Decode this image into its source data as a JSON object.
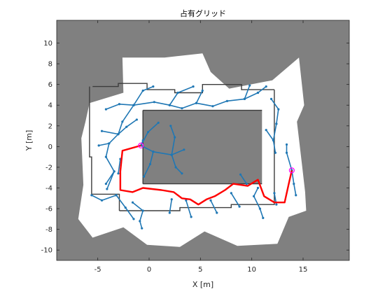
{
  "chart_data": {
    "type": "occupancy-grid",
    "title": "占有グリッド",
    "xlabel": "X [m]",
    "ylabel": "Y [m]",
    "xlim": [
      -9,
      19.5
    ],
    "ylim": [
      -11,
      12.2
    ],
    "xticks": [
      -5,
      0,
      5,
      10,
      15
    ],
    "yticks": [
      10,
      8,
      6,
      4,
      2,
      0,
      -2,
      -4,
      -6,
      -8,
      -10
    ],
    "grid": false,
    "colors": {
      "unknown": "#808080",
      "free": "#ffffff",
      "occupied": "#3c3c3c",
      "tree": "#1f77b4",
      "path": "#ff0000",
      "endpoint": "#ff00ff"
    },
    "free_regions": [
      [
        [
          -5.8,
          4.2
        ],
        [
          -2.5,
          5.2
        ],
        [
          -2.6,
          8.6
        ],
        [
          1.5,
          8.6
        ],
        [
          5.2,
          9.0
        ],
        [
          6.0,
          7.2
        ],
        [
          7.8,
          5.6
        ],
        [
          12.0,
          6.4
        ],
        [
          14.6,
          8.6
        ],
        [
          15.1,
          4.0
        ],
        [
          14.4,
          2.4
        ],
        [
          14.9,
          -1.8
        ],
        [
          15.2,
          -4.4
        ],
        [
          15.3,
          -6.2
        ],
        [
          13.6,
          -6.8
        ],
        [
          12.5,
          -9.4
        ],
        [
          8.6,
          -9.6
        ],
        [
          5.4,
          -8.2
        ],
        [
          3.0,
          -9.7
        ],
        [
          -0.2,
          -9.5
        ],
        [
          -2.5,
          -7.8
        ],
        [
          -5.5,
          -8.8
        ],
        [
          -6.9,
          -7.0
        ],
        [
          -6.4,
          -3.7
        ],
        [
          -6.5,
          -1.5
        ],
        [
          -6.6,
          0.8
        ],
        [
          -6.2,
          2.4
        ]
      ]
    ],
    "inner_block": [
      [
        -0.6,
        3.5
      ],
      [
        11.0,
        3.5
      ],
      [
        11.0,
        -3.6
      ],
      [
        -0.6,
        -3.6
      ]
    ],
    "walls": [
      [
        [
          -5.5,
          5.8
        ],
        [
          -3.0,
          5.8
        ],
        [
          -3.0,
          6.1
        ],
        [
          -0.2,
          6.1
        ],
        [
          -0.2,
          5.5
        ],
        [
          2.5,
          5.5
        ],
        [
          2.5,
          5.2
        ],
        [
          5.2,
          5.2
        ],
        [
          5.2,
          6.0
        ],
        [
          9.0,
          6.0
        ],
        [
          9.0,
          5.5
        ],
        [
          12.2,
          5.5
        ]
      ],
      [
        [
          12.2,
          5.5
        ],
        [
          12.2,
          -5.6
        ],
        [
          8.0,
          -5.6
        ],
        [
          8.0,
          -5.9
        ],
        [
          3.0,
          -5.9
        ],
        [
          3.0,
          -6.2
        ],
        [
          -2.9,
          -6.2
        ]
      ],
      [
        [
          -2.9,
          -6.2
        ],
        [
          -2.9,
          -4.6
        ],
        [
          -5.6,
          -4.6
        ],
        [
          -5.6,
          -1.0
        ],
        [
          -5.8,
          -1.0
        ],
        [
          -5.8,
          5.8
        ]
      ],
      [
        [
          -0.6,
          3.5
        ],
        [
          11.0,
          3.5
        ]
      ],
      [
        [
          -0.6,
          -3.6
        ],
        [
          11.0,
          -3.6
        ]
      ],
      [
        [
          -0.6,
          3.5
        ],
        [
          -0.6,
          -3.6
        ]
      ]
    ],
    "tree_edges": [
      [
        [
          -1.5,
          4.0
        ],
        [
          -0.6,
          5.4
        ],
        [
          0.4,
          5.8
        ]
      ],
      [
        [
          -1.5,
          4.0
        ],
        [
          -2.9,
          4.1
        ],
        [
          -4.2,
          3.6
        ]
      ],
      [
        [
          -1.5,
          4.0
        ],
        [
          0.5,
          4.3
        ],
        [
          2.0,
          4.0
        ],
        [
          3.2,
          3.7
        ],
        [
          4.6,
          4.2
        ],
        [
          6.2,
          3.9
        ],
        [
          7.6,
          4.4
        ],
        [
          9.3,
          4.6
        ],
        [
          10.6,
          5.2
        ]
      ],
      [
        [
          2.0,
          4.0
        ],
        [
          2.8,
          5.2
        ],
        [
          4.3,
          5.8
        ]
      ],
      [
        [
          4.6,
          4.2
        ],
        [
          5.2,
          5.4
        ]
      ],
      [
        [
          9.3,
          4.6
        ],
        [
          9.8,
          5.9
        ]
      ],
      [
        [
          10.6,
          5.2
        ],
        [
          11.4,
          5.8
        ]
      ],
      [
        [
          -1.5,
          4.0
        ],
        [
          -2.6,
          2.4
        ],
        [
          -3.0,
          1.2
        ],
        [
          -4.6,
          1.5
        ]
      ],
      [
        [
          -3.0,
          1.2
        ],
        [
          -3.9,
          0.3
        ],
        [
          -4.9,
          0.1
        ]
      ],
      [
        [
          -3.9,
          0.3
        ],
        [
          -4.2,
          -1.0
        ],
        [
          -3.4,
          -2.4
        ],
        [
          -4.2,
          -3.6
        ]
      ],
      [
        [
          -3.0,
          1.2
        ],
        [
          -2.2,
          1.9
        ],
        [
          -1.2,
          2.6
        ]
      ],
      [
        [
          -0.8,
          0.1
        ],
        [
          0.4,
          -0.5
        ],
        [
          2.2,
          -0.8
        ],
        [
          3.4,
          -0.3
        ]
      ],
      [
        [
          0.4,
          -0.5
        ],
        [
          0.1,
          -1.7
        ],
        [
          -0.5,
          -2.9
        ]
      ],
      [
        [
          2.2,
          -0.8
        ],
        [
          2.6,
          -2.0
        ],
        [
          3.2,
          -2.6
        ]
      ],
      [
        [
          -0.8,
          0.1
        ],
        [
          -0.1,
          1.4
        ],
        [
          0.9,
          2.3
        ]
      ],
      [
        [
          2.2,
          -0.8
        ],
        [
          2.5,
          0.9
        ],
        [
          2.1,
          2.0
        ]
      ],
      [
        [
          -0.8,
          0.1
        ],
        [
          -0.6,
          0.6
        ]
      ],
      [
        [
          -3.4,
          -2.4
        ],
        [
          -4.1,
          -4.1
        ]
      ],
      [
        [
          -3.2,
          -4.7
        ],
        [
          -4.6,
          -5.2
        ],
        [
          -5.6,
          -4.7
        ]
      ],
      [
        [
          -3.2,
          -4.7
        ],
        [
          -2.3,
          -5.9
        ],
        [
          -1.5,
          -7.0
        ]
      ],
      [
        [
          -1.6,
          -5.4
        ],
        [
          -0.6,
          -6.2
        ],
        [
          -0.9,
          -7.2
        ],
        [
          -0.7,
          -7.9
        ]
      ],
      [
        [
          2.2,
          -5.1
        ],
        [
          2.0,
          -6.4
        ]
      ],
      [
        [
          3.6,
          -5.2
        ],
        [
          4.1,
          -6.8
        ]
      ],
      [
        [
          6.0,
          -5.2
        ],
        [
          6.6,
          -6.4
        ]
      ],
      [
        [
          8.0,
          -4.5
        ],
        [
          8.8,
          -5.8
        ]
      ],
      [
        [
          9.5,
          -3.6
        ],
        [
          8.9,
          -2.7
        ]
      ],
      [
        [
          10.6,
          -4.0
        ],
        [
          10.2,
          -4.8
        ],
        [
          10.8,
          -6.0
        ],
        [
          11.1,
          -6.9
        ]
      ],
      [
        [
          12.2,
          -4.5
        ],
        [
          12.4,
          -5.6
        ]
      ],
      [
        [
          13.9,
          -2.3
        ],
        [
          13.4,
          -0.6
        ],
        [
          13.4,
          0.2
        ]
      ],
      [
        [
          13.9,
          -2.3
        ],
        [
          14.1,
          -3.6
        ],
        [
          14.3,
          -4.7
        ]
      ],
      [
        [
          12.4,
          2.2
        ],
        [
          12.6,
          3.6
        ],
        [
          11.9,
          4.6
        ]
      ],
      [
        [
          12.4,
          2.2
        ],
        [
          12.1,
          0.6
        ],
        [
          12.3,
          -0.6
        ]
      ],
      [
        [
          12.1,
          0.6
        ],
        [
          11.4,
          1.6
        ]
      ],
      [
        [
          -3.0,
          -2.6
        ],
        [
          -2.8,
          -1.2
        ]
      ]
    ],
    "path": [
      [
        -0.8,
        0.1
      ],
      [
        -2.6,
        -0.4
      ],
      [
        -2.8,
        -2.4
      ],
      [
        -2.8,
        -4.2
      ],
      [
        -1.6,
        -4.4
      ],
      [
        -0.6,
        -4.0
      ],
      [
        1.2,
        -4.2
      ],
      [
        2.4,
        -4.4
      ],
      [
        3.2,
        -5.0
      ],
      [
        4.0,
        -5.1
      ],
      [
        4.8,
        -5.6
      ],
      [
        5.6,
        -5.1
      ],
      [
        6.4,
        -4.8
      ],
      [
        7.4,
        -4.2
      ],
      [
        8.2,
        -3.6
      ],
      [
        9.6,
        -3.8
      ],
      [
        10.6,
        -3.2
      ],
      [
        11.2,
        -4.8
      ],
      [
        12.2,
        -5.4
      ],
      [
        13.2,
        -5.4
      ],
      [
        13.6,
        -3.6
      ],
      [
        13.9,
        -2.3
      ]
    ],
    "start": [
      -0.8,
      0.1
    ],
    "goal": [
      13.9,
      -2.3
    ]
  }
}
